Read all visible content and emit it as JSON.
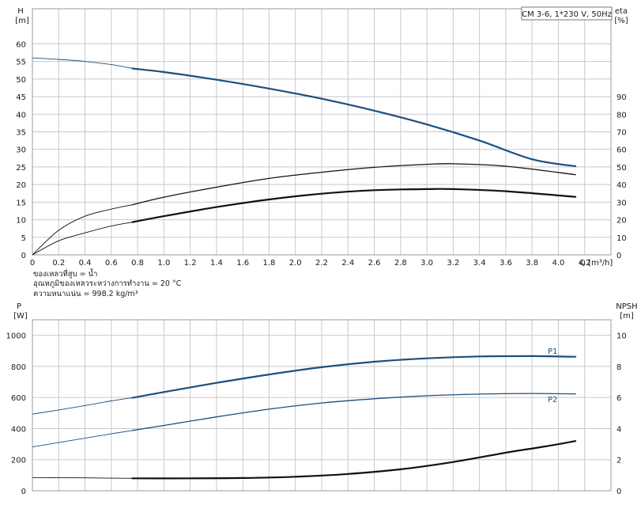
{
  "legend_box": "CM 3-6, 1*230 V, 50Hz",
  "notes": [
    "ของเหลวที่สูบ = น้ำ",
    "อุณหภูมิของเหลวระหว่างการทำงาน = 20 °C",
    "ความหนาแน่น = 998.2 kg/m³"
  ],
  "colors": {
    "blue": "#1c4f7c",
    "black": "#111111",
    "grid": "#c8c8c8"
  },
  "chart_data": [
    {
      "type": "line",
      "panel": "top",
      "y_label": [
        "H",
        "[m]"
      ],
      "y2_label": [
        "eta",
        "[%]"
      ],
      "x_label": "Q [m³/h]",
      "xlim": [
        0,
        4.4
      ],
      "ylim": [
        0,
        70
      ],
      "y2lim": [
        0,
        140
      ],
      "x_ticks": [
        "0",
        "0.2",
        "0.4",
        "0.6",
        "0.8",
        "1.0",
        "1.2",
        "1.4",
        "1.6",
        "1.8",
        "2.0",
        "2.2",
        "2.4",
        "2.6",
        "2.8",
        "3.0",
        "3.2",
        "3.4",
        "3.6",
        "3.8",
        "4.0",
        "4.2"
      ],
      "y_ticks": [
        "0",
        "5",
        "10",
        "15",
        "20",
        "25",
        "30",
        "35",
        "40",
        "45",
        "50",
        "55",
        "60"
      ],
      "y2_ticks": [
        "0",
        "10",
        "20",
        "30",
        "40",
        "50",
        "60",
        "70",
        "80",
        "90"
      ],
      "series": [
        {
          "axis": "left",
          "style": "blue-thick",
          "thin_until": 0.76,
          "x": [
            0,
            0.2,
            0.4,
            0.6,
            0.76,
            1.0,
            1.4,
            1.8,
            2.2,
            2.6,
            3.0,
            3.4,
            3.8,
            4.13
          ],
          "y": [
            56,
            55.6,
            55,
            54.1,
            53,
            52,
            49.8,
            47.3,
            44.4,
            41,
            37.1,
            32.5,
            27.2,
            25.2
          ]
        },
        {
          "axis": "right",
          "style": "black-medium",
          "thin_until": 0.76,
          "x": [
            0,
            0.2,
            0.4,
            0.6,
            0.76,
            1.0,
            1.4,
            1.8,
            2.2,
            2.6,
            3.0,
            3.2,
            3.6,
            4.13
          ],
          "y": [
            0,
            14,
            22,
            26,
            28.5,
            32.8,
            38.5,
            43.5,
            47,
            49.8,
            51.5,
            51.8,
            50.4,
            45.6
          ]
        },
        {
          "axis": "right",
          "style": "black-thick",
          "thin_until": 0.76,
          "x": [
            0,
            0.2,
            0.4,
            0.6,
            0.76,
            1.0,
            1.4,
            1.8,
            2.2,
            2.6,
            3.0,
            3.2,
            3.6,
            4.13
          ],
          "y": [
            0,
            8,
            12.5,
            16.4,
            18.6,
            22,
            27.2,
            31.5,
            34.8,
            36.8,
            37.4,
            37.4,
            36.2,
            33
          ]
        }
      ]
    },
    {
      "type": "line",
      "panel": "bottom",
      "y_label": [
        "P",
        "[W]"
      ],
      "y2_label": [
        "NPSH",
        "[m]"
      ],
      "xlim": [
        0,
        4.4
      ],
      "ylim": [
        0,
        1100
      ],
      "y2lim": [
        0,
        11
      ],
      "y_ticks": [
        "0",
        "200",
        "400",
        "600",
        "800",
        "1000"
      ],
      "y2_ticks": [
        "0",
        "2",
        "4",
        "6",
        "8",
        "10"
      ],
      "series": [
        {
          "name": "P1",
          "axis": "left",
          "style": "blue-thick",
          "thin_until": 0.76,
          "x": [
            0,
            0.2,
            0.4,
            0.6,
            0.76,
            1.0,
            1.4,
            1.8,
            2.2,
            2.6,
            3.0,
            3.4,
            3.8,
            4.13
          ],
          "y": [
            493,
            520,
            548,
            578,
            598,
            635,
            694,
            748,
            795,
            830,
            852,
            864,
            866,
            862
          ]
        },
        {
          "name": "P2",
          "axis": "left",
          "style": "blue-medium",
          "thin_until": 0.76,
          "x": [
            0,
            0.2,
            0.4,
            0.6,
            0.76,
            1.0,
            1.4,
            1.8,
            2.2,
            2.6,
            3.0,
            3.4,
            3.8,
            4.13
          ],
          "y": [
            282,
            310,
            338,
            366,
            388,
            420,
            475,
            525,
            565,
            592,
            611,
            622,
            626,
            623
          ]
        },
        {
          "axis": "right",
          "style": "black-thick",
          "thin_until": 0.76,
          "x": [
            0,
            0.4,
            0.76,
            1.2,
            1.6,
            2.0,
            2.4,
            2.8,
            3.2,
            3.6,
            3.9,
            4.13
          ],
          "y": [
            0.85,
            0.83,
            0.8,
            0.8,
            0.82,
            0.9,
            1.08,
            1.38,
            1.85,
            2.45,
            2.85,
            3.2
          ]
        }
      ]
    }
  ]
}
